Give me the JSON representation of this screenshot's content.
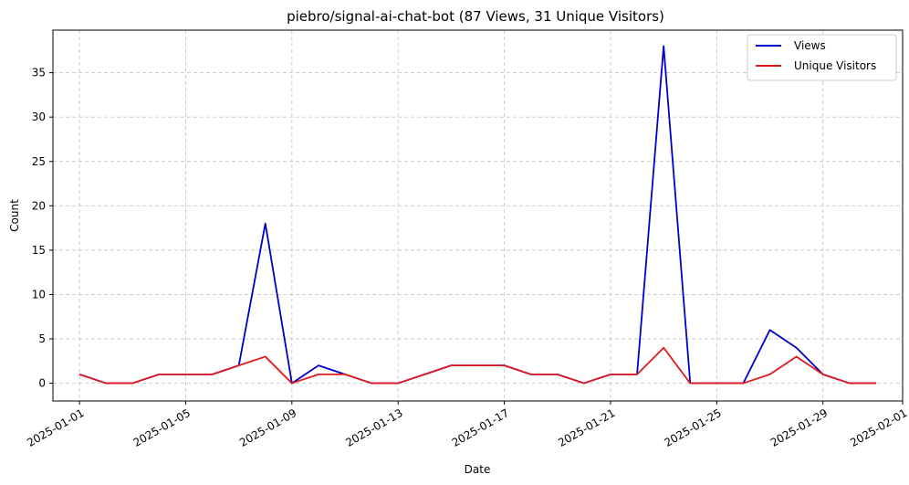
{
  "chart_data": {
    "type": "line",
    "title": "piebro/signal-ai-chat-bot (87 Views, 31 Unique Visitors)",
    "xlabel": "Date",
    "ylabel": "Count",
    "x_start": "2025-01-01",
    "x": [
      "2025-01-01",
      "2025-01-02",
      "2025-01-03",
      "2025-01-04",
      "2025-01-05",
      "2025-01-06",
      "2025-01-07",
      "2025-01-08",
      "2025-01-09",
      "2025-01-10",
      "2025-01-11",
      "2025-01-12",
      "2025-01-13",
      "2025-01-14",
      "2025-01-15",
      "2025-01-16",
      "2025-01-17",
      "2025-01-18",
      "2025-01-19",
      "2025-01-20",
      "2025-01-21",
      "2025-01-22",
      "2025-01-23",
      "2025-01-24",
      "2025-01-25",
      "2025-01-26",
      "2025-01-27",
      "2025-01-28",
      "2025-01-29",
      "2025-01-30",
      "2025-01-31"
    ],
    "x_ticks": [
      "2025-01-01",
      "2025-01-05",
      "2025-01-09",
      "2025-01-13",
      "2025-01-17",
      "2025-01-21",
      "2025-01-25",
      "2025-01-29",
      "2025-02-01"
    ],
    "y_ticks": [
      0,
      5,
      10,
      15,
      20,
      25,
      30,
      35
    ],
    "ylim": [
      -2,
      39.8
    ],
    "xlim": [
      "2024-12-31",
      "2025-02-01"
    ],
    "grid": true,
    "legend_position": "top-right",
    "series": [
      {
        "name": "Views",
        "color": "#0000cc",
        "values": [
          1,
          0,
          0,
          1,
          1,
          1,
          2,
          18,
          0,
          2,
          1,
          0,
          0,
          1,
          2,
          2,
          2,
          1,
          1,
          0,
          1,
          1,
          38,
          0,
          0,
          0,
          6,
          4,
          1,
          0,
          0
        ]
      },
      {
        "name": "Unique Visitors",
        "color": "#e31a1c",
        "values": [
          1,
          0,
          0,
          1,
          1,
          1,
          2,
          3,
          0,
          1,
          1,
          0,
          0,
          1,
          2,
          2,
          2,
          1,
          1,
          0,
          1,
          1,
          4,
          0,
          0,
          0,
          1,
          3,
          1,
          0,
          0
        ]
      }
    ]
  }
}
